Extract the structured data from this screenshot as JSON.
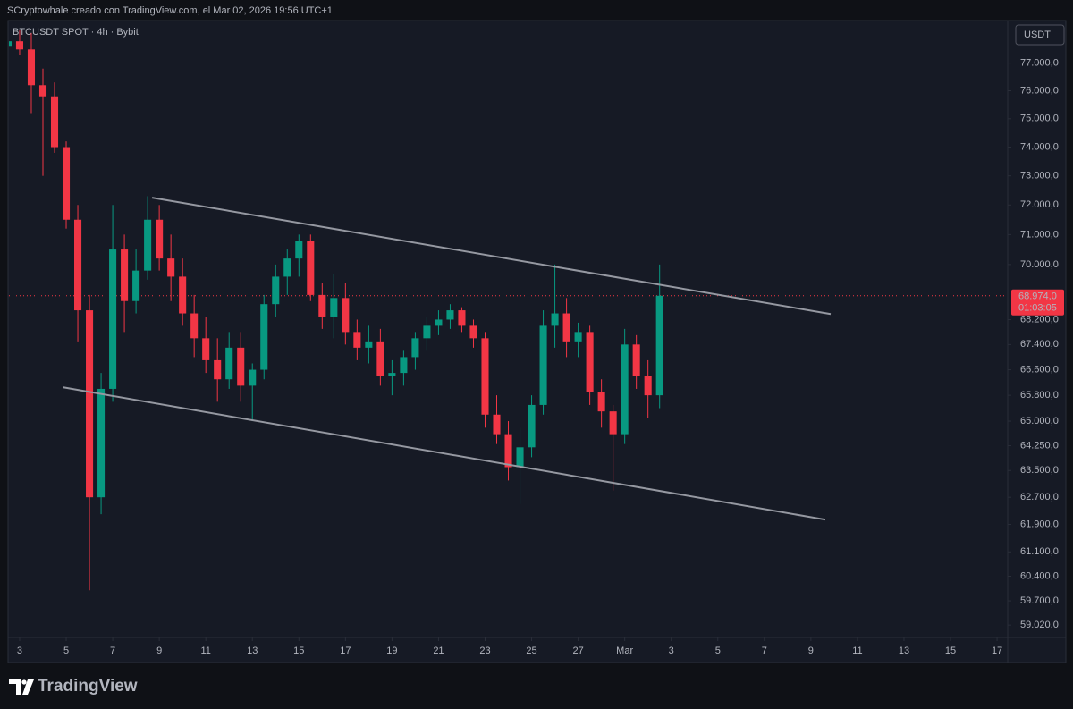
{
  "chart_data": {
    "type": "candlestick",
    "title": "SCryptowhale creado con TradingView.com, el Mar 02, 2026 19:56 UTC+1",
    "subtitle": "BTCUSDT SPOT · 4h · Bybit",
    "currency": "USDT",
    "up_color": "#089981",
    "down_color": "#f23645",
    "log_scale": true,
    "grid": false,
    "x": [
      -0.5,
      0,
      0.5,
      1,
      1.5,
      2,
      2.5,
      3,
      3.5,
      4,
      4.5,
      5,
      5.5,
      6,
      6.5,
      7,
      7.5,
      8,
      8.5,
      9,
      9.5,
      10,
      10.5,
      11,
      11.5,
      12,
      12.5,
      13,
      13.5,
      14,
      14.5,
      15,
      15.5,
      16,
      16.5,
      17,
      17.5,
      18,
      18.5,
      19,
      19.5,
      20,
      20.5,
      21,
      21.5,
      22,
      22.5,
      23,
      23.5,
      24,
      24.5,
      25,
      25.5,
      26,
      26.5,
      27,
      27.5
    ],
    "open": [
      77600,
      77800,
      77500,
      76200,
      75800,
      74000,
      71500,
      68500,
      62700,
      66000,
      70500,
      68800,
      69800,
      71500,
      70200,
      69600,
      68400,
      67600,
      66900,
      66300,
      67300,
      66100,
      66600,
      68700,
      69600,
      70200,
      70800,
      69000,
      68300,
      68900,
      67800,
      67300,
      67500,
      66400,
      66500,
      67000,
      67600,
      68000,
      68200,
      68500,
      68000,
      67600,
      65200,
      64600,
      63600,
      64200,
      65500,
      68000,
      68400,
      67500,
      67800,
      65900,
      65300,
      64600,
      67400,
      66400,
      65800
    ],
    "high": [
      78300,
      78200,
      78100,
      76800,
      76300,
      74200,
      72000,
      69000,
      66500,
      72000,
      71000,
      70500,
      72300,
      72000,
      71000,
      70200,
      69000,
      68300,
      67600,
      67800,
      67800,
      66800,
      69000,
      70000,
      70500,
      71000,
      71000,
      69400,
      69700,
      69400,
      68200,
      68000,
      67900,
      66900,
      67200,
      67800,
      68300,
      68500,
      68700,
      68600,
      68200,
      67800,
      65800,
      65000,
      64800,
      65800,
      68500,
      70000,
      68900,
      68100,
      68000,
      66300,
      65500,
      67900,
      67700,
      66900,
      70000
    ],
    "low": [
      77000,
      77300,
      75200,
      73000,
      73800,
      71200,
      67500,
      60000,
      62200,
      65600,
      67800,
      68400,
      69500,
      69800,
      68800,
      68000,
      67000,
      66500,
      65600,
      66000,
      65600,
      65000,
      66300,
      68300,
      69000,
      69600,
      68800,
      67900,
      67600,
      67400,
      66900,
      66800,
      66100,
      65800,
      66100,
      66600,
      67200,
      67700,
      67900,
      67800,
      67300,
      64800,
      64300,
      63200,
      62500,
      63900,
      65200,
      67300,
      67000,
      67000,
      65500,
      64800,
      62900,
      64300,
      66000,
      65100,
      65400
    ],
    "close": [
      77800,
      77500,
      76200,
      75800,
      74000,
      71500,
      68500,
      62700,
      66000,
      70500,
      68800,
      69800,
      71500,
      70200,
      69600,
      68400,
      67600,
      66900,
      66300,
      67300,
      66100,
      66600,
      68700,
      69600,
      70200,
      70800,
      69000,
      68300,
      68900,
      67800,
      67300,
      67500,
      66400,
      66500,
      67000,
      67600,
      68000,
      68200,
      68500,
      68000,
      67600,
      65200,
      64600,
      63600,
      64200,
      65500,
      68000,
      68400,
      67500,
      67800,
      65900,
      65300,
      64600,
      67400,
      66400,
      65800,
      68974
    ],
    "xlim": [
      -0.46,
      42.42
    ],
    "xticks": [
      {
        "value": 0,
        "label": "3"
      },
      {
        "value": 2,
        "label": "5"
      },
      {
        "value": 4,
        "label": "7"
      },
      {
        "value": 6,
        "label": "9"
      },
      {
        "value": 8,
        "label": "11"
      },
      {
        "value": 10,
        "label": "13"
      },
      {
        "value": 12,
        "label": "15"
      },
      {
        "value": 14,
        "label": "17"
      },
      {
        "value": 16,
        "label": "19"
      },
      {
        "value": 18,
        "label": "21"
      },
      {
        "value": 20,
        "label": "23"
      },
      {
        "value": 22,
        "label": "25"
      },
      {
        "value": 24,
        "label": "27"
      },
      {
        "value": 26,
        "label": "Mar"
      },
      {
        "value": 28,
        "label": "3"
      },
      {
        "value": 30,
        "label": "5"
      },
      {
        "value": 32,
        "label": "7"
      },
      {
        "value": 34,
        "label": "9"
      },
      {
        "value": 36,
        "label": "11"
      },
      {
        "value": 38,
        "label": "13"
      },
      {
        "value": 40,
        "label": "15"
      },
      {
        "value": 42,
        "label": "17"
      }
    ],
    "ylim": [
      58700,
      78500
    ],
    "yticks": [
      {
        "value": 77000,
        "label": "77.000,0"
      },
      {
        "value": 76000,
        "label": "76.000,0"
      },
      {
        "value": 75000,
        "label": "75.000,0"
      },
      {
        "value": 74000,
        "label": "74.000,0"
      },
      {
        "value": 73000,
        "label": "73.000,0"
      },
      {
        "value": 72000,
        "label": "72.000,0"
      },
      {
        "value": 71000,
        "label": "71.000,0"
      },
      {
        "value": 70000,
        "label": "70.000,0"
      },
      {
        "value": 68200,
        "label": "68.200,0"
      },
      {
        "value": 67400,
        "label": "67.400,0"
      },
      {
        "value": 66600,
        "label": "66.600,0"
      },
      {
        "value": 65800,
        "label": "65.800,0"
      },
      {
        "value": 65000,
        "label": "65.000,0"
      },
      {
        "value": 64250,
        "label": "64.250,0"
      },
      {
        "value": 63500,
        "label": "63.500,0"
      },
      {
        "value": 62700,
        "label": "62.700,0"
      },
      {
        "value": 61900,
        "label": "61.900,0"
      },
      {
        "value": 61100,
        "label": "61.100,0"
      },
      {
        "value": 60400,
        "label": "60.400,0"
      },
      {
        "value": 59700,
        "label": "59.700,0"
      },
      {
        "value": 59020,
        "label": "59.020,0"
      }
    ],
    "last_price": {
      "value": 68974,
      "label": "68.974,0",
      "countdown": "01:03:05",
      "color": "#f23645"
    },
    "trend_lines": [
      {
        "x": [
          5.69,
          34.85
        ],
        "y": [
          72250,
          68380
        ],
        "color": "#9598a1"
      },
      {
        "x": [
          1.85,
          34.62
        ],
        "y": [
          66050,
          62040
        ],
        "color": "#9598a1"
      }
    ]
  },
  "footer": {
    "brand": "TradingView"
  }
}
